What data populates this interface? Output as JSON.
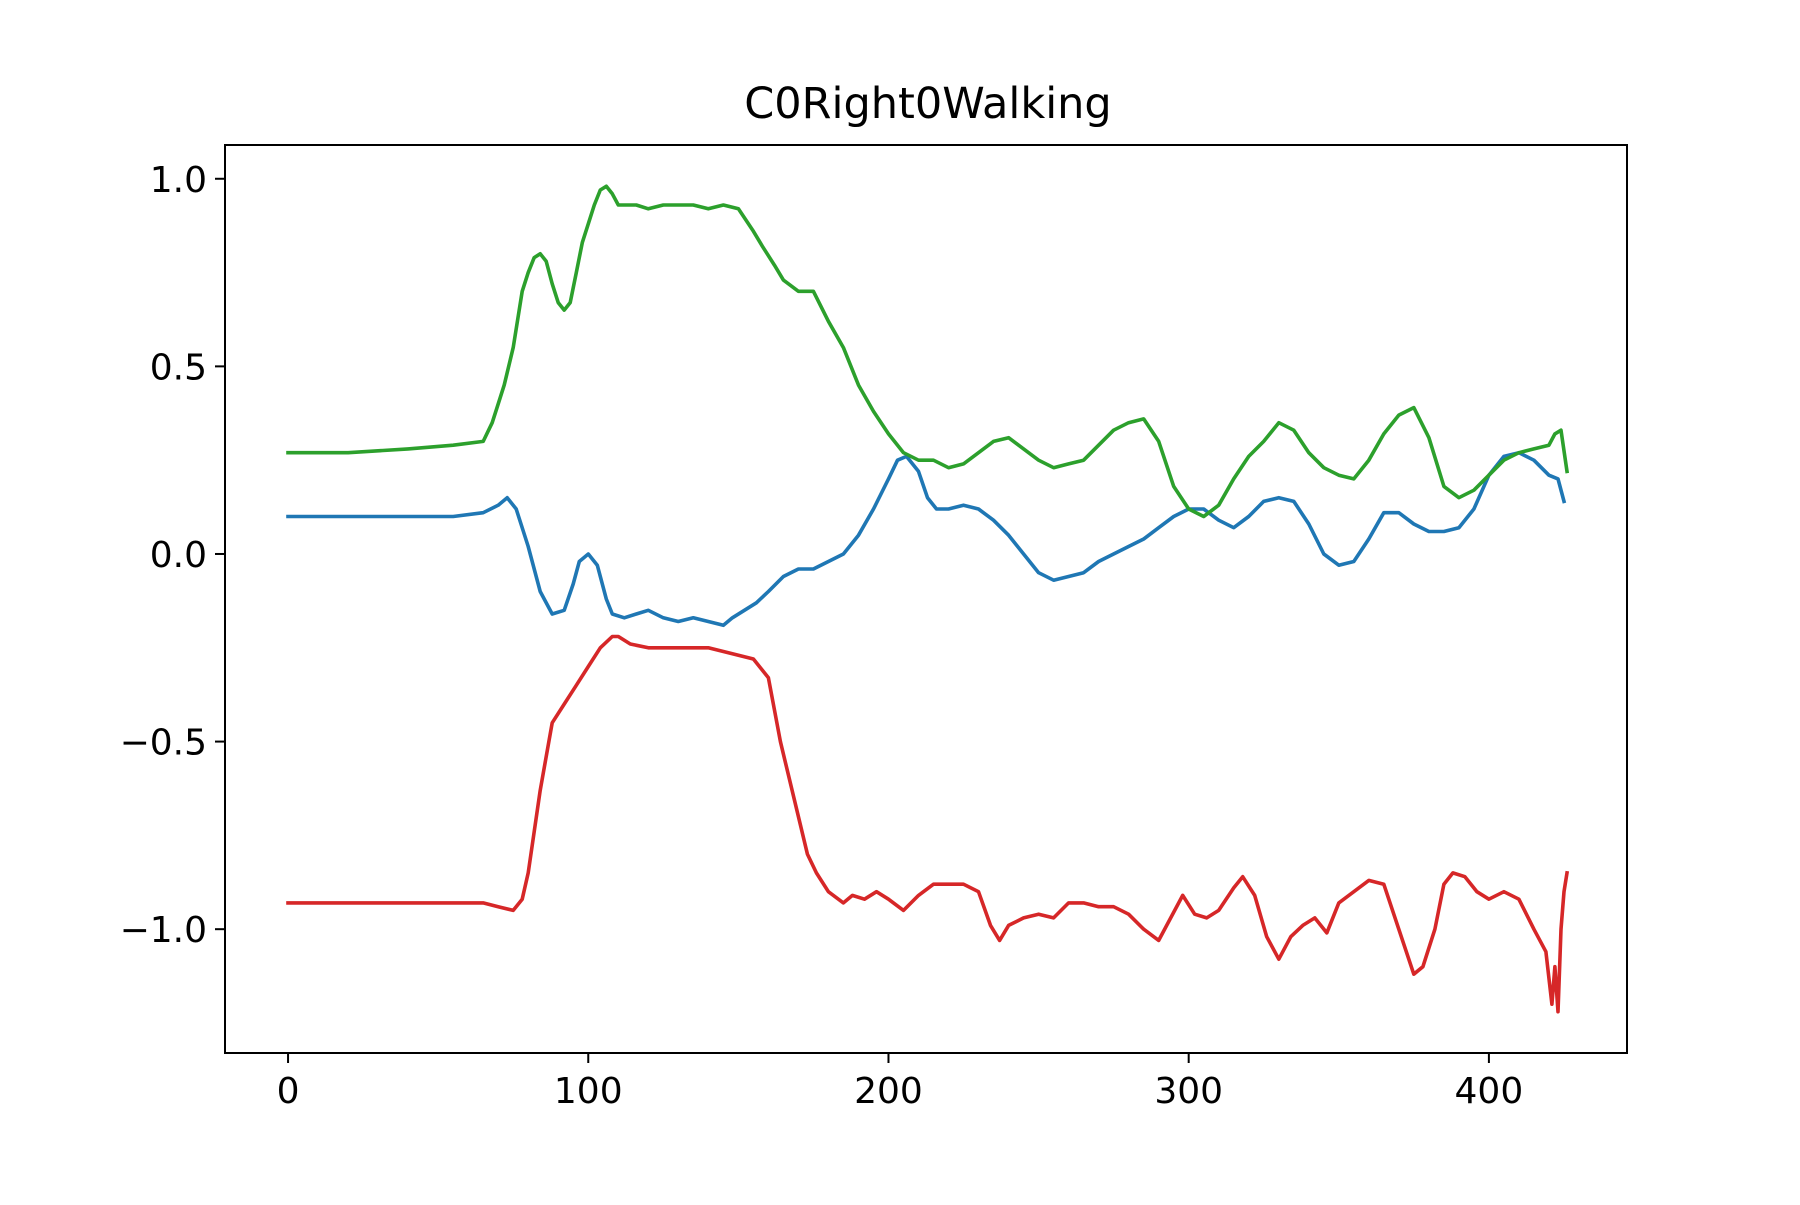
{
  "chart_data": {
    "type": "line",
    "title": "C0Right0Walking",
    "xlabel": "",
    "ylabel": "",
    "xlim": [
      -21,
      446
    ],
    "ylim": [
      -1.33,
      1.09
    ],
    "xticks": [
      0,
      100,
      200,
      300,
      400
    ],
    "xtick_labels": [
      "0",
      "100",
      "200",
      "300",
      "400"
    ],
    "yticks": [
      -1.0,
      -0.5,
      0.0,
      0.5,
      1.0
    ],
    "ytick_labels": [
      "−1.0",
      "−0.5",
      "0.0",
      "0.5",
      "1.0"
    ],
    "grid": false,
    "legend": "none",
    "series": [
      {
        "color": "#1f77b4",
        "x": [
          0,
          20,
          40,
          55,
          65,
          70,
          73,
          76,
          80,
          84,
          88,
          92,
          95,
          97,
          100,
          103,
          106,
          108,
          112,
          116,
          120,
          125,
          130,
          135,
          140,
          145,
          148,
          152,
          156,
          160,
          165,
          170,
          175,
          180,
          185,
          190,
          195,
          200,
          203,
          206,
          210,
          213,
          216,
          220,
          225,
          230,
          235,
          240,
          245,
          250,
          255,
          260,
          265,
          270,
          275,
          280,
          285,
          290,
          295,
          300,
          305,
          310,
          315,
          320,
          325,
          330,
          335,
          340,
          345,
          350,
          355,
          360,
          365,
          370,
          375,
          380,
          385,
          390,
          395,
          400,
          405,
          410,
          415,
          420,
          423,
          425
        ],
        "y": [
          0.1,
          0.1,
          0.1,
          0.1,
          0.11,
          0.13,
          0.15,
          0.12,
          0.02,
          -0.1,
          -0.16,
          -0.15,
          -0.08,
          -0.02,
          0.0,
          -0.03,
          -0.12,
          -0.16,
          -0.17,
          -0.16,
          -0.15,
          -0.17,
          -0.18,
          -0.17,
          -0.18,
          -0.19,
          -0.17,
          -0.15,
          -0.13,
          -0.1,
          -0.06,
          -0.04,
          -0.04,
          -0.02,
          0.0,
          0.05,
          0.12,
          0.2,
          0.25,
          0.26,
          0.22,
          0.15,
          0.12,
          0.12,
          0.13,
          0.12,
          0.09,
          0.05,
          0.0,
          -0.05,
          -0.07,
          -0.06,
          -0.05,
          -0.02,
          0.0,
          0.02,
          0.04,
          0.07,
          0.1,
          0.12,
          0.12,
          0.09,
          0.07,
          0.1,
          0.14,
          0.15,
          0.14,
          0.08,
          0.0,
          -0.03,
          -0.02,
          0.04,
          0.11,
          0.11,
          0.08,
          0.06,
          0.06,
          0.07,
          0.12,
          0.21,
          0.26,
          0.27,
          0.25,
          0.21,
          0.2,
          0.14
        ]
      },
      {
        "color": "#2ca02c",
        "x": [
          0,
          20,
          40,
          55,
          65,
          68,
          70,
          72,
          75,
          78,
          80,
          82,
          84,
          86,
          88,
          90,
          92,
          94,
          96,
          98,
          100,
          102,
          104,
          106,
          108,
          110,
          112,
          116,
          120,
          125,
          130,
          135,
          140,
          145,
          150,
          155,
          158,
          162,
          165,
          170,
          175,
          180,
          185,
          190,
          195,
          200,
          205,
          210,
          215,
          220,
          225,
          230,
          235,
          240,
          245,
          250,
          255,
          260,
          265,
          270,
          275,
          280,
          285,
          290,
          295,
          300,
          305,
          310,
          315,
          320,
          325,
          330,
          335,
          340,
          345,
          350,
          355,
          360,
          365,
          370,
          375,
          380,
          385,
          390,
          395,
          400,
          405,
          410,
          415,
          420,
          422,
          424,
          426
        ],
        "y": [
          0.27,
          0.27,
          0.28,
          0.29,
          0.3,
          0.35,
          0.4,
          0.45,
          0.55,
          0.7,
          0.75,
          0.79,
          0.8,
          0.78,
          0.72,
          0.67,
          0.65,
          0.67,
          0.75,
          0.83,
          0.88,
          0.93,
          0.97,
          0.98,
          0.96,
          0.93,
          0.93,
          0.93,
          0.92,
          0.93,
          0.93,
          0.93,
          0.92,
          0.93,
          0.92,
          0.86,
          0.82,
          0.77,
          0.73,
          0.7,
          0.7,
          0.62,
          0.55,
          0.45,
          0.38,
          0.32,
          0.27,
          0.25,
          0.25,
          0.23,
          0.24,
          0.27,
          0.3,
          0.31,
          0.28,
          0.25,
          0.23,
          0.24,
          0.25,
          0.29,
          0.33,
          0.35,
          0.36,
          0.3,
          0.18,
          0.12,
          0.1,
          0.13,
          0.2,
          0.26,
          0.3,
          0.35,
          0.33,
          0.27,
          0.23,
          0.21,
          0.2,
          0.25,
          0.32,
          0.37,
          0.39,
          0.31,
          0.18,
          0.15,
          0.17,
          0.21,
          0.25,
          0.27,
          0.28,
          0.29,
          0.32,
          0.33,
          0.22
        ]
      },
      {
        "color": "#d62728",
        "x": [
          0,
          20,
          40,
          55,
          65,
          70,
          75,
          78,
          80,
          84,
          88,
          92,
          96,
          100,
          104,
          108,
          110,
          114,
          120,
          125,
          130,
          135,
          140,
          145,
          150,
          155,
          160,
          164,
          167,
          170,
          173,
          176,
          180,
          185,
          188,
          192,
          196,
          200,
          205,
          210,
          215,
          220,
          225,
          230,
          234,
          237,
          240,
          245,
          250,
          255,
          260,
          265,
          270,
          275,
          280,
          285,
          290,
          294,
          298,
          302,
          306,
          310,
          315,
          318,
          322,
          326,
          330,
          334,
          338,
          342,
          346,
          350,
          355,
          360,
          365,
          370,
          375,
          378,
          382,
          385,
          388,
          392,
          396,
          400,
          405,
          410,
          415,
          419,
          421,
          422,
          423,
          424,
          425,
          426
        ],
        "y": [
          -0.93,
          -0.93,
          -0.93,
          -0.93,
          -0.93,
          -0.94,
          -0.95,
          -0.92,
          -0.85,
          -0.63,
          -0.45,
          -0.4,
          -0.35,
          -0.3,
          -0.25,
          -0.22,
          -0.22,
          -0.24,
          -0.25,
          -0.25,
          -0.25,
          -0.25,
          -0.25,
          -0.26,
          -0.27,
          -0.28,
          -0.33,
          -0.5,
          -0.6,
          -0.7,
          -0.8,
          -0.85,
          -0.9,
          -0.93,
          -0.91,
          -0.92,
          -0.9,
          -0.92,
          -0.95,
          -0.91,
          -0.88,
          -0.88,
          -0.88,
          -0.9,
          -0.99,
          -1.03,
          -0.99,
          -0.97,
          -0.96,
          -0.97,
          -0.93,
          -0.93,
          -0.94,
          -0.94,
          -0.96,
          -1.0,
          -1.03,
          -0.97,
          -0.91,
          -0.96,
          -0.97,
          -0.95,
          -0.89,
          -0.86,
          -0.91,
          -1.02,
          -1.08,
          -1.02,
          -0.99,
          -0.97,
          -1.01,
          -0.93,
          -0.9,
          -0.87,
          -0.88,
          -1.0,
          -1.12,
          -1.1,
          -1.0,
          -0.88,
          -0.85,
          -0.86,
          -0.9,
          -0.92,
          -0.9,
          -0.92,
          -1.0,
          -1.06,
          -1.2,
          -1.1,
          -1.22,
          -1.0,
          -0.9,
          -0.85
        ]
      }
    ]
  }
}
